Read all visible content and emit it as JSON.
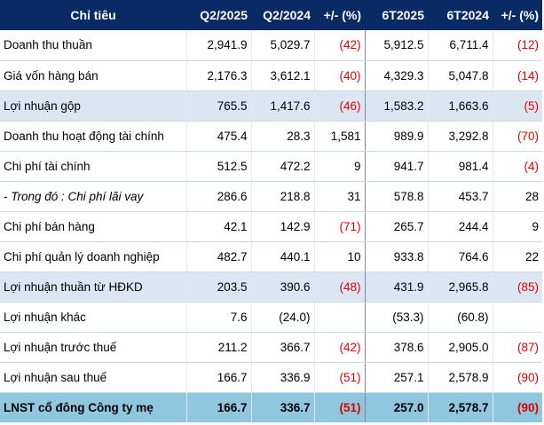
{
  "table": {
    "headers": [
      "Chỉ tiêu",
      "Q2/2025",
      "Q2/2024",
      "+/- (%)",
      "6T2025",
      "6T2024",
      "+/- (%)"
    ],
    "rows": [
      {
        "label": "Doanh thu thuần",
        "style": "normal",
        "values": [
          "2,941.9",
          "5,029.7",
          "(42)",
          "5,912.5",
          "6,711.4",
          "(12)"
        ]
      },
      {
        "label": "Giá vốn hàng bán",
        "style": "normal",
        "values": [
          "2,176.3",
          "3,612.1",
          "(40)",
          "4,329.3",
          "5,047.8",
          "(14)"
        ]
      },
      {
        "label": "Lợi nhuận gộp",
        "style": "shade",
        "values": [
          "765.5",
          "1,417.6",
          "(46)",
          "1,583.2",
          "1,663.6",
          "(5)"
        ]
      },
      {
        "label": "Doanh thu hoạt động tài chính",
        "style": "normal",
        "values": [
          "475.4",
          "28.3",
          "1,581",
          "989.9",
          "3,292.8",
          "(70)"
        ]
      },
      {
        "label": "Chi phí tài chính",
        "style": "normal",
        "values": [
          "512.5",
          "472.2",
          "9",
          "941.7",
          "981.4",
          "(4)"
        ]
      },
      {
        "label": "- Trong đó : Chi phí lãi vay",
        "style": "italic",
        "values": [
          "286.6",
          "218.8",
          "31",
          "578.8",
          "453.7",
          "28"
        ]
      },
      {
        "label": "Chi phí bán hàng",
        "style": "normal",
        "values": [
          "42.1",
          "142.9",
          "(71)",
          "265.7",
          "244.4",
          "9"
        ]
      },
      {
        "label": "Chi phí quản lý doanh nghiệp",
        "style": "normal",
        "values": [
          "482.7",
          "440.1",
          "10",
          "933.8",
          "764.6",
          "22"
        ]
      },
      {
        "label": "Lợi nhuận thuần từ HĐKD",
        "style": "shade",
        "values": [
          "203.5",
          "390.6",
          "(48)",
          "431.9",
          "2,965.8",
          "(85)"
        ]
      },
      {
        "label": "Lợi nhuận khác",
        "style": "normal",
        "values": [
          "7.6",
          "(24.0)",
          "",
          "(53.3)",
          "(60.8)",
          ""
        ]
      },
      {
        "label": "Lợi nhuận trước thuế",
        "style": "normal",
        "values": [
          "211.2",
          "366.7",
          "(42)",
          "378.6",
          "2,905.0",
          "(87)"
        ]
      },
      {
        "label": "Lợi nhuận sau thuế",
        "style": "normal",
        "values": [
          "166.7",
          "336.9",
          "(51)",
          "257.1",
          "2,578.9",
          "(90)"
        ]
      },
      {
        "label": "LNST cổ đông Công ty mẹ",
        "style": "total",
        "values": [
          "166.7",
          "336.7",
          "(51)",
          "257.0",
          "2,578.7",
          "(90)"
        ]
      }
    ]
  },
  "colors": {
    "header_bg": "#0a2a66",
    "shade_bg": "#dce6f2",
    "total_bg": "#8fc7de",
    "negative": "#e00000"
  }
}
